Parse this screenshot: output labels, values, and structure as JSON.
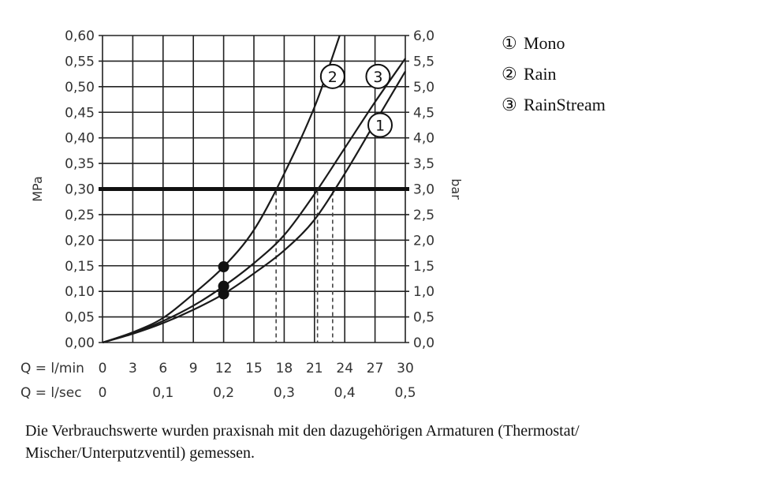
{
  "chart_data": {
    "type": "line",
    "x_rows": [
      {
        "prefix": "Q = l/min",
        "ticks": [
          "0",
          "3",
          "6",
          "9",
          "12",
          "15",
          "18",
          "21",
          "24",
          "27",
          "30"
        ]
      },
      {
        "prefix": "Q = l/sec",
        "ticks": [
          "0",
          "0,1",
          "0,2",
          "0,3",
          "0,4",
          "0,5"
        ]
      }
    ],
    "y_left": {
      "label": "MPa",
      "ticks": [
        "0,00",
        "0,05",
        "0,10",
        "0,15",
        "0,20",
        "0,25",
        "0,30",
        "0,35",
        "0,40",
        "0,45",
        "0,50",
        "0,55",
        "0,60"
      ]
    },
    "y_right": {
      "label": "bar",
      "ticks": [
        "0,0",
        "0,5",
        "1,0",
        "1,5",
        "2,0",
        "2,5",
        "3,0",
        "3,5",
        "4,0",
        "4,5",
        "5,0",
        "5,5",
        "6,0"
      ]
    },
    "xlim": [
      0,
      30
    ],
    "ylim": [
      0,
      0.6
    ],
    "grid": true,
    "reference_line": 0.3,
    "series": [
      {
        "name": "1",
        "marker": 0.095,
        "crossing": 22.8,
        "label_at": [
          27.5,
          0.425
        ],
        "points": [
          [
            0,
            0
          ],
          [
            3,
            0.017
          ],
          [
            6,
            0.038
          ],
          [
            9,
            0.064
          ],
          [
            12,
            0.095
          ],
          [
            15,
            0.135
          ],
          [
            18,
            0.18
          ],
          [
            21,
            0.24
          ],
          [
            24,
            0.33
          ],
          [
            27,
            0.43
          ],
          [
            30,
            0.53
          ]
        ]
      },
      {
        "name": "2",
        "marker": 0.148,
        "crossing": 17.2,
        "label_at": [
          22.8,
          0.52
        ],
        "points": [
          [
            0,
            0
          ],
          [
            3,
            0.02
          ],
          [
            6,
            0.048
          ],
          [
            9,
            0.095
          ],
          [
            12,
            0.148
          ],
          [
            15,
            0.22
          ],
          [
            18,
            0.33
          ],
          [
            21,
            0.46
          ],
          [
            23.5,
            0.6
          ]
        ]
      },
      {
        "name": "3",
        "marker": 0.11,
        "crossing": 21.3,
        "label_at": [
          27.3,
          0.52
        ],
        "points": [
          [
            0,
            0
          ],
          [
            3,
            0.018
          ],
          [
            6,
            0.042
          ],
          [
            9,
            0.072
          ],
          [
            12,
            0.11
          ],
          [
            15,
            0.155
          ],
          [
            18,
            0.21
          ],
          [
            21,
            0.29
          ],
          [
            24,
            0.38
          ],
          [
            27,
            0.47
          ],
          [
            30,
            0.555
          ]
        ]
      }
    ]
  },
  "legend": [
    {
      "mark": "①",
      "label": "Mono"
    },
    {
      "mark": "②",
      "label": "Rain"
    },
    {
      "mark": "③",
      "label": "RainStream"
    }
  ],
  "caption": "Die Verbrauchswerte wurden praxisnah mit den dazugehörigen Armaturen (Thermostat/ Mischer/Unterputzventil) gemessen."
}
